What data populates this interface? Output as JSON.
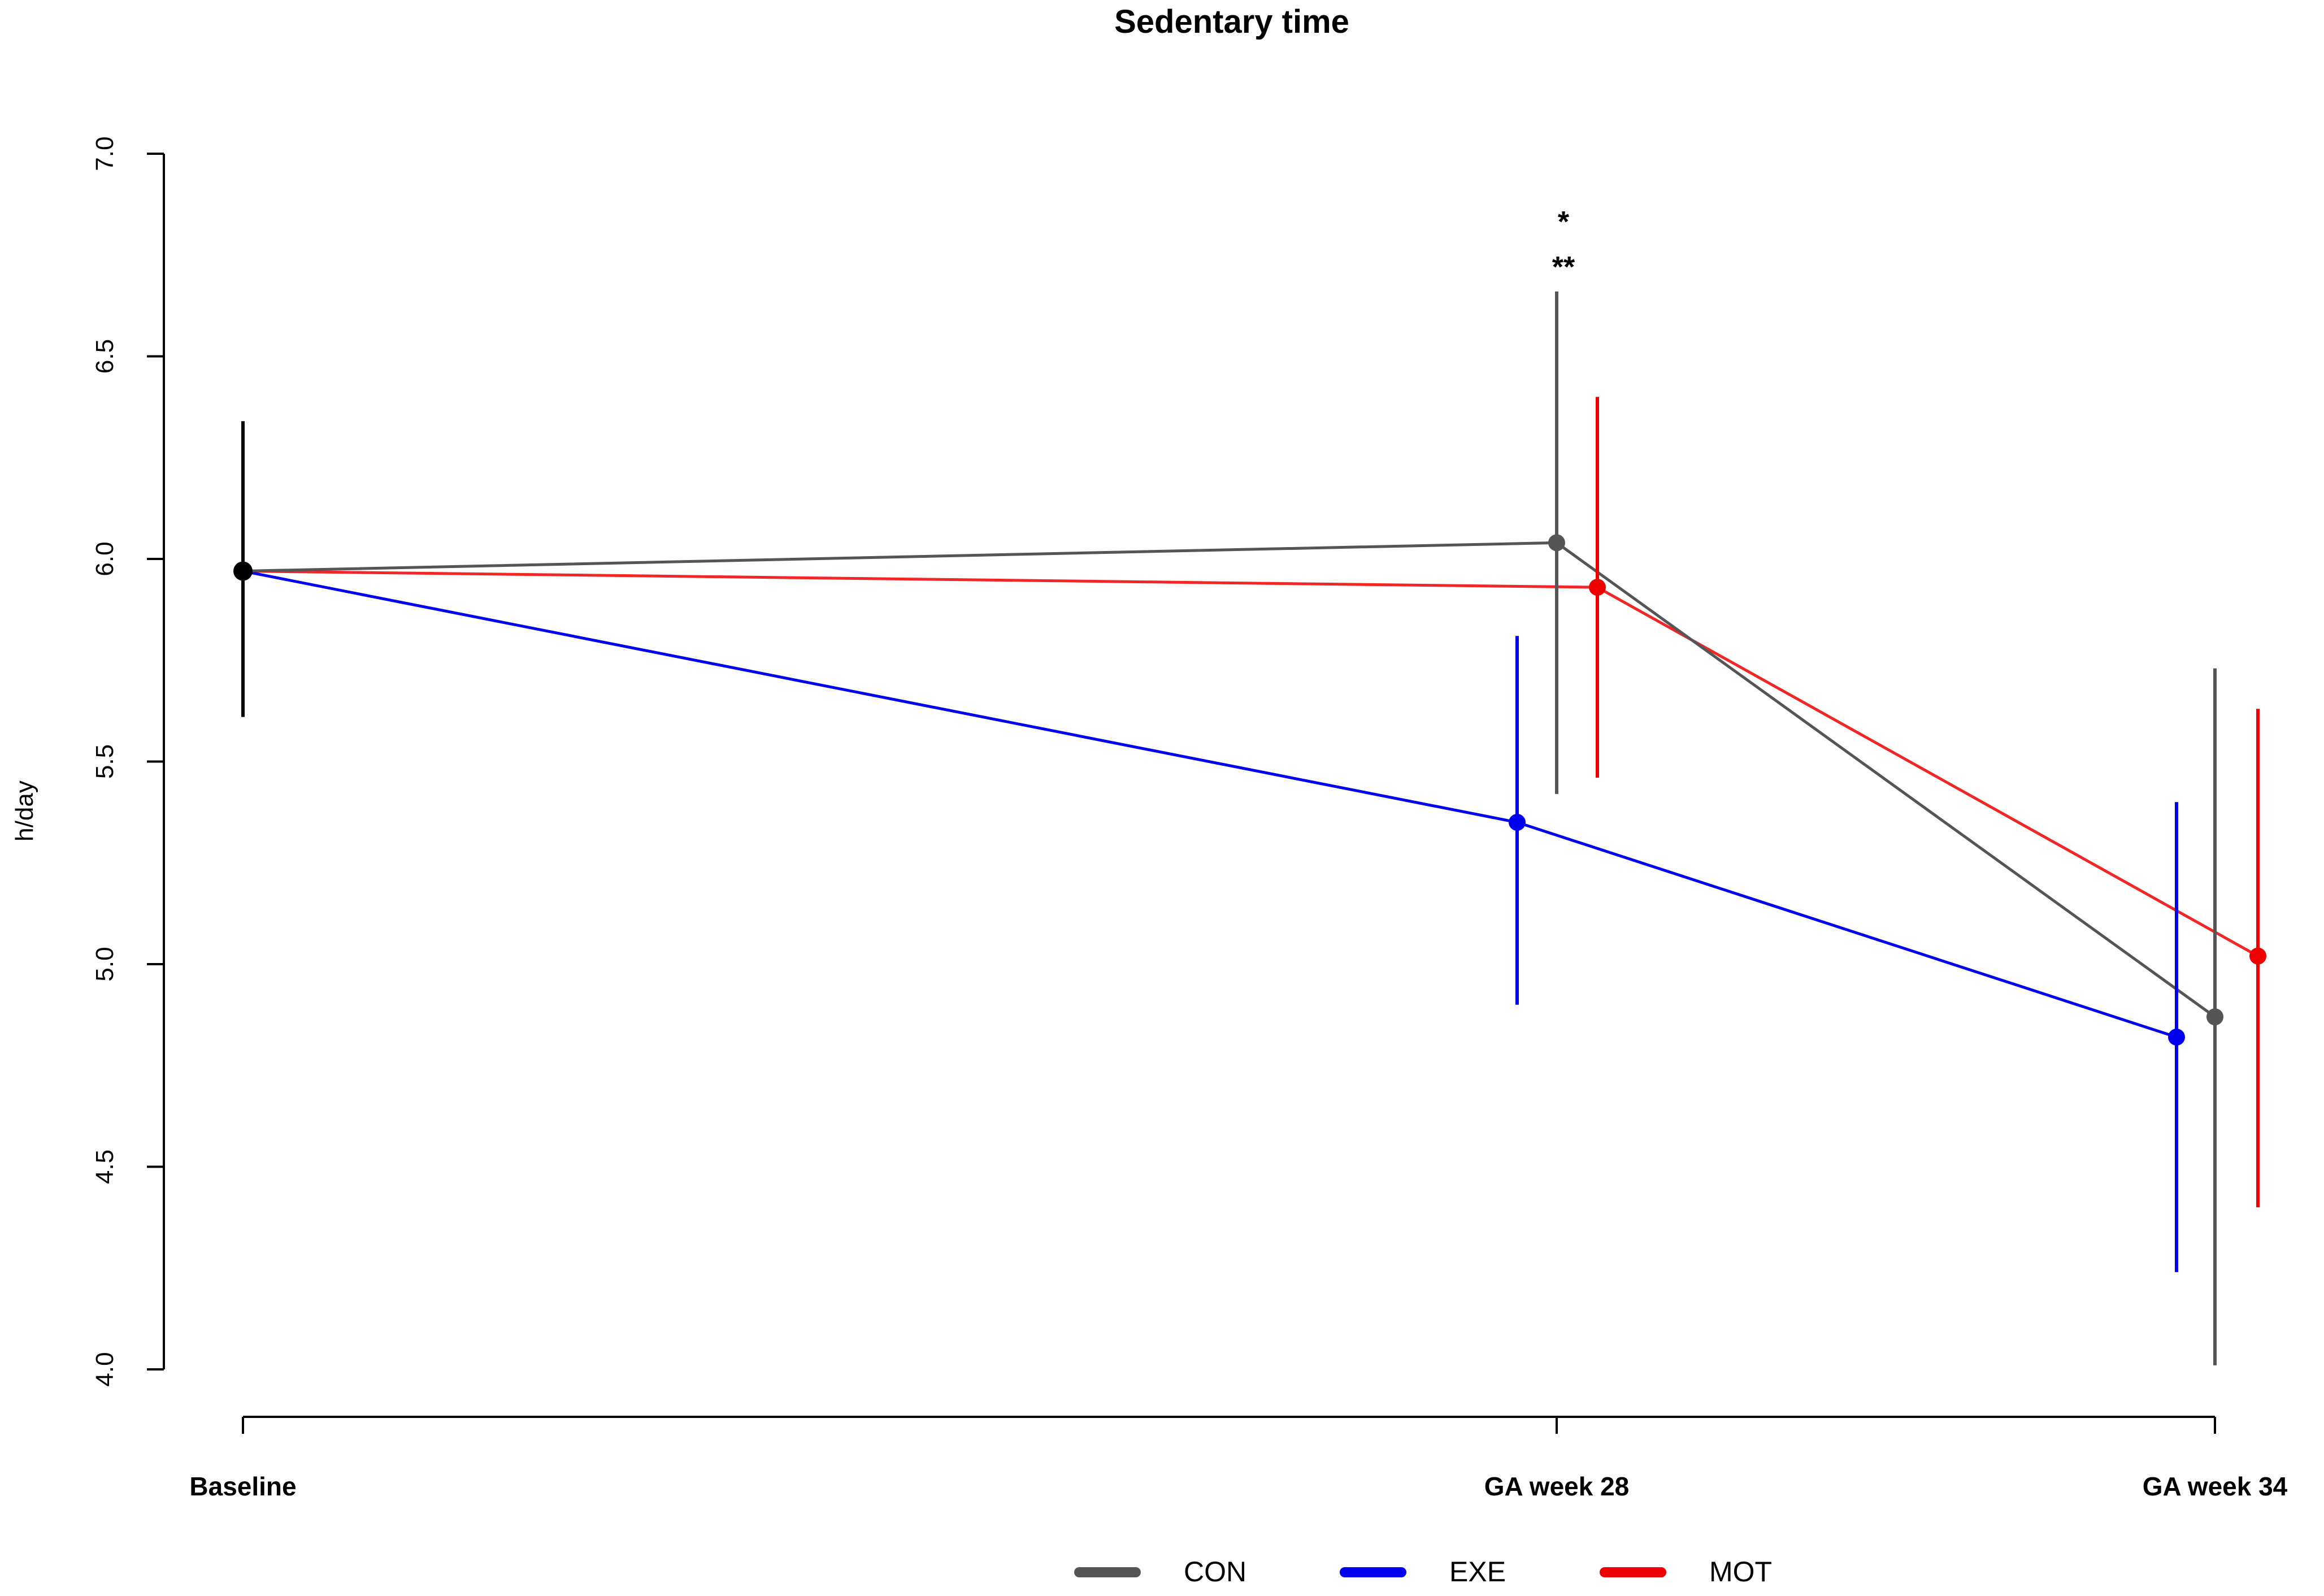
{
  "chart_data": {
    "type": "line",
    "title": "Sedentary time",
    "ylabel": "h/day",
    "xlabel": "",
    "categories": [
      "Baseline",
      "GA week 28",
      "GA  week 34"
    ],
    "ylim": [
      4.0,
      7.0
    ],
    "yticks": [
      "4.0",
      "4.5",
      "5.0",
      "5.5",
      "6.0",
      "6.5",
      "7.0"
    ],
    "grid": false,
    "legend_position": "bottom",
    "baseline": {
      "value": 5.97,
      "lower": 5.61,
      "upper": 6.34,
      "color": "#000000"
    },
    "series": [
      {
        "name": "CON",
        "color": "#555555",
        "values": [
          5.97,
          6.04,
          4.87
        ],
        "lower": [
          5.61,
          5.42,
          4.01
        ],
        "upper": [
          6.34,
          6.66,
          5.73
        ]
      },
      {
        "name": "EXE",
        "color": "#0000ee",
        "values": [
          5.97,
          5.35,
          4.82
        ],
        "lower": [
          5.61,
          4.9,
          4.24
        ],
        "upper": [
          6.34,
          5.81,
          5.4
        ]
      },
      {
        "name": "MOT",
        "color": "#ee0000",
        "values": [
          5.97,
          5.93,
          5.02
        ],
        "lower": [
          5.61,
          5.46,
          4.4
        ],
        "upper": [
          6.34,
          6.4,
          5.63
        ]
      }
    ],
    "annotations": [
      {
        "text": "*",
        "category": "GA week 28"
      },
      {
        "text": "**",
        "category": "GA week 28"
      }
    ]
  }
}
